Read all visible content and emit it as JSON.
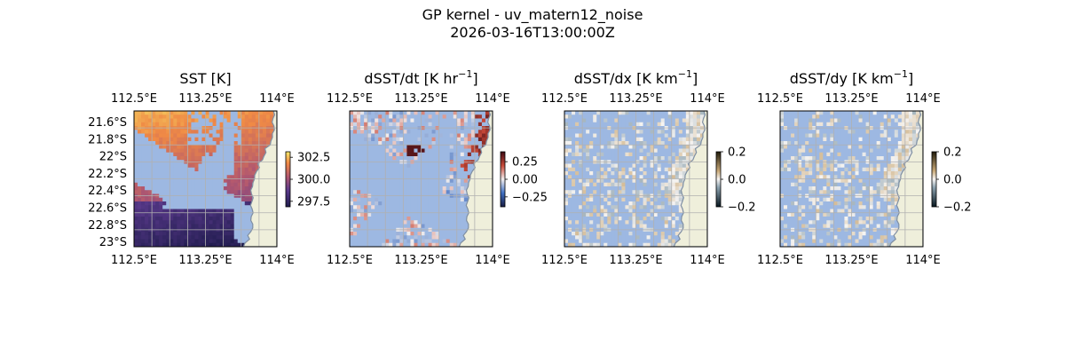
{
  "figure": {
    "title_line1": "GP kernel - uv_matern12_noise",
    "title_line2": "2026-03-16T13:00:00Z"
  },
  "colors": {
    "land": "#efefdb",
    "ocean_mask": "#9db8e2",
    "coast": "#7f8fa3",
    "grid": "#b0b0b0"
  },
  "chart_data": [
    {
      "type": "heatmap",
      "title": "SST [K]",
      "x_ticks": [
        "112.5°E",
        "113.25°E",
        "114°E"
      ],
      "y_ticks": [
        "21.6°S",
        "21.8°S",
        "22°S",
        "22.2°S",
        "22.4°S",
        "22.6°S",
        "22.8°S",
        "23°S"
      ],
      "colorbar_ticks": [
        "302.5",
        "300.0",
        "297.5"
      ],
      "colormap": "thermal"
    },
    {
      "type": "heatmap",
      "title_main": "dSST/dt [K hr",
      "title_sup": "−1",
      "title_end": "]",
      "x_ticks": [
        "112.5°E",
        "113.25°E",
        "114°E"
      ],
      "colorbar_ticks": [
        "0.25",
        "0.00",
        "−0.25"
      ],
      "colormap": "balance"
    },
    {
      "type": "heatmap",
      "title_main": "dSST/dx [K km",
      "title_sup": "−1",
      "title_end": "]",
      "x_ticks": [
        "112.5°E",
        "113.25°E",
        "114°E"
      ],
      "colorbar_ticks": [
        "0.2",
        "0.0",
        "−0.2"
      ],
      "colormap": "diff"
    },
    {
      "type": "heatmap",
      "title_main": "dSST/dy [K km",
      "title_sup": "−1",
      "title_end": "]",
      "x_ticks": [
        "112.5°E",
        "113.25°E",
        "114°E"
      ],
      "colorbar_ticks": [
        "0.2",
        "0.0",
        "−0.2"
      ],
      "colormap": "diff"
    }
  ]
}
